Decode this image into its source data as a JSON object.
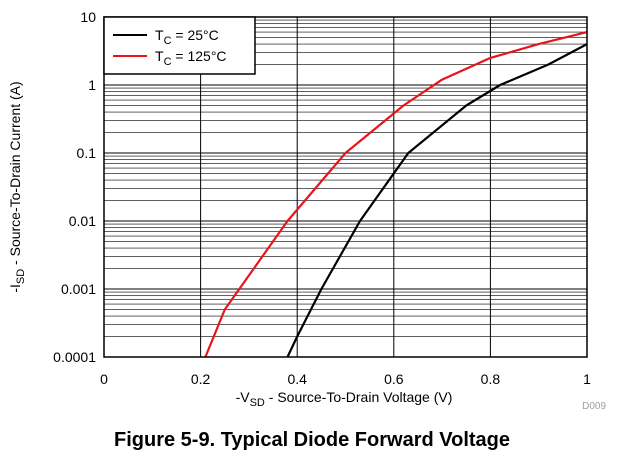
{
  "chart_data": {
    "type": "line",
    "title": "",
    "xlabel": {
      "prefix": "-V",
      "sub": "SD",
      "suffix": " - Source-To-Drain Voltage (V)"
    },
    "ylabel": {
      "prefix": "-I",
      "sub": "SD",
      "suffix": " - Source-To-Drain Current (A)"
    },
    "xlim": [
      0,
      1
    ],
    "ylim": [
      0.0001,
      10
    ],
    "yscale": "log",
    "grid": true,
    "x_ticks": [
      0,
      0.2,
      0.4,
      0.6,
      0.8,
      1
    ],
    "x_tick_labels": [
      "0",
      "0.2",
      "0.4",
      "0.6",
      "0.8",
      "1"
    ],
    "y_ticks": [
      0.0001,
      0.001,
      0.01,
      0.1,
      1,
      10
    ],
    "y_tick_labels": [
      "0.0001",
      "0.001",
      "0.01",
      "0.1",
      "1",
      "10"
    ],
    "legend_position": "top-left",
    "series": [
      {
        "name": {
          "prefix": "T",
          "sub": "C",
          "suffix": " = 25°C"
        },
        "color": "#000000",
        "x": [
          0.38,
          0.4,
          0.45,
          0.53,
          0.63,
          0.75,
          0.82,
          0.92,
          1.0
        ],
        "y": [
          0.0001,
          0.0002,
          0.001,
          0.01,
          0.1,
          0.5,
          1.0,
          2.0,
          4.0
        ]
      },
      {
        "name": {
          "prefix": "T",
          "sub": "C",
          "suffix": " = 125°C"
        },
        "color": "#e8141c",
        "x": [
          0.21,
          0.25,
          0.38,
          0.5,
          0.62,
          0.7,
          0.8,
          0.9,
          1.0
        ],
        "y": [
          0.0001,
          0.0005,
          0.01,
          0.1,
          0.5,
          1.2,
          2.5,
          4.0,
          6.0
        ]
      }
    ]
  },
  "figure_id": "D009",
  "caption": "Figure 5-9. Typical Diode Forward Voltage"
}
